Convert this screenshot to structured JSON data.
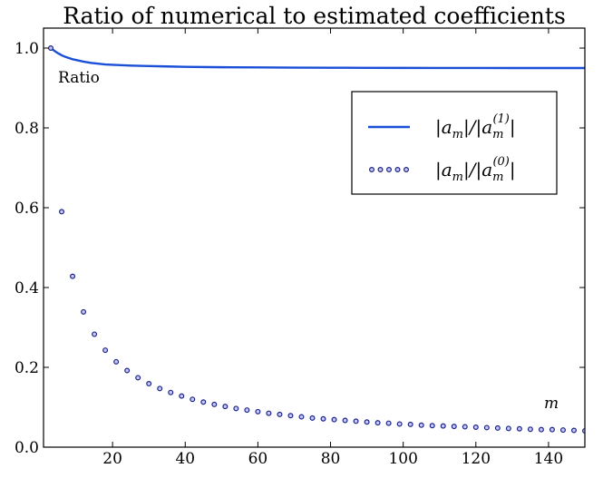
{
  "chart_data": {
    "type": "line",
    "title": "Ratio of numerical to estimated coefficients",
    "ylabel": "Ratio",
    "xlabel": "m",
    "xlim": [
      1,
      150
    ],
    "ylim": [
      0,
      1.05
    ],
    "xticks": [
      20,
      40,
      60,
      80,
      100,
      120,
      140
    ],
    "yticks": [
      0.0,
      0.2,
      0.4,
      0.6,
      0.8,
      1.0
    ],
    "xtick_labels": [
      "20",
      "40",
      "60",
      "80",
      "100",
      "120",
      "140"
    ],
    "ytick_labels": [
      "0.0",
      "0.2",
      "0.4",
      "0.6",
      "0.8",
      "1.0"
    ],
    "grid": false,
    "legend_position": "upper-right",
    "series": [
      {
        "legend_parts": [
          "|a",
          "m",
          "|/|a",
          "m",
          "(1)",
          "|"
        ],
        "style": "solid-line",
        "color": "#1a4fd8",
        "x": [
          3,
          4,
          5,
          6,
          7,
          8,
          9,
          10,
          12,
          14,
          16,
          18,
          20,
          25,
          30,
          35,
          40,
          50,
          60,
          70,
          80,
          90,
          100,
          110,
          120,
          130,
          140,
          150
        ],
        "y": [
          1.0,
          0.993,
          0.987,
          0.982,
          0.978,
          0.975,
          0.972,
          0.97,
          0.966,
          0.963,
          0.961,
          0.959,
          0.958,
          0.956,
          0.955,
          0.954,
          0.953,
          0.952,
          0.9515,
          0.951,
          0.9507,
          0.9505,
          0.9503,
          0.9502,
          0.9501,
          0.95,
          0.95,
          0.95
        ]
      },
      {
        "legend_parts": [
          "|a",
          "m",
          "|/|a",
          "m",
          "(0)",
          "|"
        ],
        "style": "dotted-markers",
        "color": "#1a237e",
        "x": [
          3,
          6,
          9,
          12,
          15,
          18,
          21,
          24,
          27,
          30,
          33,
          36,
          39,
          42,
          45,
          48,
          51,
          54,
          57,
          60,
          63,
          66,
          69,
          72,
          75,
          78,
          81,
          84,
          87,
          90,
          93,
          96,
          99,
          102,
          105,
          108,
          111,
          114,
          117,
          120,
          123,
          126,
          129,
          132,
          135,
          138,
          141,
          144,
          147,
          150
        ],
        "y": [
          1.0,
          0.59,
          0.428,
          0.339,
          0.283,
          0.243,
          0.214,
          0.192,
          0.174,
          0.159,
          0.147,
          0.137,
          0.128,
          0.12,
          0.113,
          0.107,
          0.102,
          0.097,
          0.093,
          0.089,
          0.085,
          0.082,
          0.079,
          0.076,
          0.073,
          0.071,
          0.069,
          0.067,
          0.065,
          0.063,
          0.061,
          0.06,
          0.058,
          0.057,
          0.055,
          0.054,
          0.053,
          0.052,
          0.051,
          0.05,
          0.049,
          0.048,
          0.047,
          0.046,
          0.045,
          0.044,
          0.044,
          0.043,
          0.042,
          0.041
        ]
      }
    ]
  }
}
